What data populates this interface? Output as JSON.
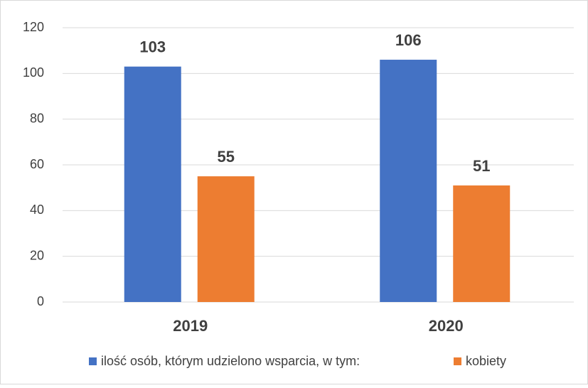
{
  "chart_data": {
    "type": "bar",
    "categories": [
      "2019",
      "2020"
    ],
    "series": [
      {
        "name": "ilość osób, którym udzielono wsparcia, w tym:",
        "color": "#4472c4",
        "values": [
          103,
          106
        ]
      },
      {
        "name": "kobiety",
        "color": "#ed7d31",
        "values": [
          55,
          51
        ]
      }
    ],
    "ylim": [
      0,
      120
    ],
    "yticks": [
      0,
      20,
      40,
      60,
      80,
      100,
      120
    ],
    "grid": true,
    "legend": "bottom"
  }
}
